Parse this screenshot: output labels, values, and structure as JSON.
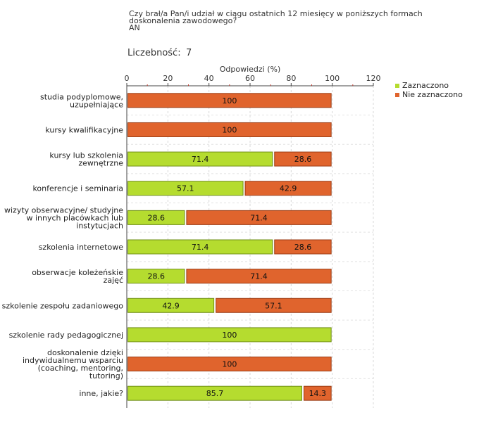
{
  "chart_data": {
    "type": "bar",
    "orientation": "horizontal",
    "stacked": true,
    "title_lines": [
      "Czy brał/a Pan/i udział w ciągu ostatnich 12 miesięcy w poniższych formach",
      "doskonalenia zawodowego?",
      " AN"
    ],
    "count_label": "Liczebność:",
    "count_value": "7",
    "xlabel": "Odpowiedzi (%)",
    "xlim": [
      0,
      120
    ],
    "xticks": [
      0,
      20,
      40,
      60,
      80,
      100,
      120
    ],
    "categories": [
      [
        "studia podyplomowe,",
        "uzupełniające"
      ],
      [
        "kursy kwalifikacyjne"
      ],
      [
        "kursy lub szkolenia",
        "zewnętrzne"
      ],
      [
        "konferencje i seminaria"
      ],
      [
        "wizyty obserwacyjne/ studyjne",
        "w innych placówkach lub",
        "instytucjach"
      ],
      [
        "szkolenia internetowe"
      ],
      [
        "obserwacje koleżeńskie",
        "zajęć"
      ],
      [
        "szkolenie zespołu zadaniowego"
      ],
      [
        "szkolenie rady pedagogicznej"
      ],
      [
        "doskonalenie dzięki",
        "indywidualnemu wsparciu",
        "(coaching, mentoring,",
        "tutoring)"
      ],
      [
        "inne, jakie?"
      ]
    ],
    "series": [
      {
        "name": "Zaznaczono",
        "color": "#b5dc2f",
        "stroke": "#6f8f14",
        "values": [
          0,
          0,
          71.4,
          57.1,
          28.6,
          71.4,
          28.6,
          42.9,
          100,
          0,
          85.7
        ]
      },
      {
        "name": "Nie zaznaczono",
        "color": "#e0642d",
        "stroke": "#9a3a12",
        "values": [
          100,
          100,
          28.6,
          42.9,
          71.4,
          28.6,
          71.4,
          57.1,
          0,
          100,
          14.3
        ]
      }
    ],
    "legend": "top-right",
    "grid": true
  }
}
